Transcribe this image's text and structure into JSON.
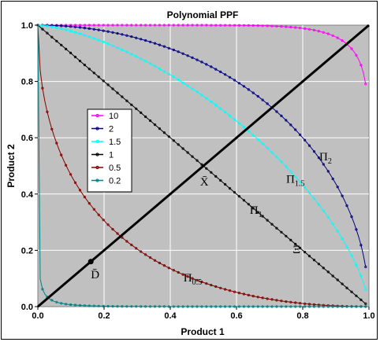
{
  "chart_data": {
    "type": "line",
    "title": "Polynomial PPF",
    "xlabel": "Product 1",
    "ylabel": "Product 2",
    "xlim": [
      0,
      1
    ],
    "ylim": [
      0,
      1
    ],
    "x_ticks": [
      "0.0",
      "0.2",
      "0.4",
      "0.6",
      "0.8",
      "1.0"
    ],
    "y_ticks": [
      "0.0",
      "0.2",
      "0.4",
      "0.6",
      "0.8",
      "1.0"
    ],
    "grid": true,
    "legend_position": "left-middle",
    "series": [
      {
        "name": "10",
        "exponent": 10,
        "color": "#ff00ff",
        "x_range": [
          0,
          0.99
        ]
      },
      {
        "name": "2",
        "exponent": 2,
        "color": "#000080",
        "x_range": [
          0,
          0.99
        ]
      },
      {
        "name": "1.5",
        "exponent": 1.5,
        "color": "#00ffff",
        "x_range": [
          0,
          0.99
        ]
      },
      {
        "name": "1",
        "exponent": 1,
        "color": "#000000",
        "x_range": [
          0,
          0.99
        ]
      },
      {
        "name": "0.5",
        "exponent": 0.5,
        "color": "#800000",
        "x_range": [
          0,
          0.99
        ]
      },
      {
        "name": "0.2",
        "exponent": 0.2,
        "color": "#008080",
        "x_range": [
          0,
          0.99
        ]
      }
    ],
    "diagonal": {
      "from": [
        0,
        0
      ],
      "to": [
        1,
        1
      ],
      "color": "#000000"
    },
    "point_D": {
      "x": 0.16,
      "y": 0.16
    },
    "annotations": [
      {
        "main": "Π",
        "sub": "2",
        "x": 0.85,
        "y": 0.52
      },
      {
        "main": "Π",
        "sub": "1.5",
        "x": 0.75,
        "y": 0.44
      },
      {
        "main": "X̄",
        "sub": "",
        "x": 0.49,
        "y": 0.43
      },
      {
        "main": "Π",
        "sub": "1",
        "x": 0.64,
        "y": 0.33
      },
      {
        "main": "Ξ",
        "sub": "",
        "x": 0.77,
        "y": 0.19
      },
      {
        "main": "D̄",
        "sub": "",
        "x": 0.16,
        "y": 0.1
      },
      {
        "main": "Π",
        "sub": "0.5",
        "x": 0.44,
        "y": 0.09
      }
    ]
  }
}
